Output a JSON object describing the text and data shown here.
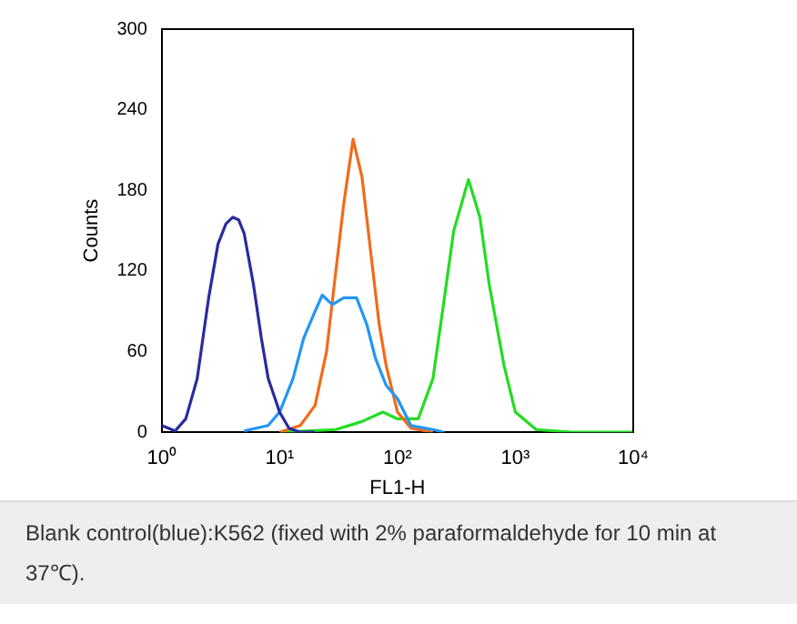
{
  "chart_data": {
    "type": "line",
    "xlabel": "FL1-H",
    "ylabel": "Counts",
    "log": "x",
    "grid": false,
    "legend": false,
    "marker": "none",
    "xlim": [
      1,
      10000
    ],
    "xticks": [
      {
        "value": 1,
        "label": "10⁰"
      },
      {
        "value": 10,
        "label": "10¹"
      },
      {
        "value": 100,
        "label": "10²"
      },
      {
        "value": 1000,
        "label": "10³"
      },
      {
        "value": 10000,
        "label": "10⁴"
      }
    ],
    "ylim": [
      0,
      300
    ],
    "yticks": [
      0,
      60,
      120,
      180,
      240,
      300
    ],
    "series": [
      {
        "color": "#2a2aa0",
        "x": [
          1,
          1.3,
          1.6,
          2,
          2.5,
          3,
          3.5,
          4,
          4.5,
          5,
          6,
          7,
          8,
          10,
          12,
          15,
          20
        ],
        "values": [
          5,
          1,
          10,
          40,
          100,
          140,
          155,
          160,
          158,
          148,
          110,
          70,
          40,
          15,
          3,
          0,
          0
        ]
      },
      {
        "color": "#2196f3",
        "x": [
          5,
          8,
          10,
          13,
          16,
          20,
          23,
          28,
          35,
          45,
          55,
          65,
          80,
          100,
          130,
          200,
          250
        ],
        "values": [
          1,
          5,
          15,
          40,
          70,
          90,
          102,
          95,
          100,
          100,
          80,
          55,
          35,
          25,
          5,
          2,
          0
        ]
      },
      {
        "color": "#f26a1b",
        "x": [
          10,
          15,
          20,
          25,
          30,
          35,
          42,
          50,
          60,
          70,
          80,
          100,
          130,
          200
        ],
        "values": [
          0,
          5,
          20,
          60,
          120,
          170,
          218,
          190,
          130,
          80,
          50,
          15,
          3,
          0
        ]
      },
      {
        "color": "#22dd22",
        "x": [
          10,
          30,
          50,
          75,
          100,
          150,
          200,
          250,
          300,
          400,
          500,
          600,
          800,
          1000,
          1500,
          3000,
          10000
        ],
        "values": [
          0,
          2,
          8,
          15,
          10,
          10,
          40,
          100,
          150,
          188,
          160,
          110,
          50,
          15,
          2,
          0,
          0
        ]
      }
    ],
    "annotations": [
      "Blank control(blue):K562 (fixed with 2% paraformaldehyde for 10 min at 37℃)."
    ]
  }
}
